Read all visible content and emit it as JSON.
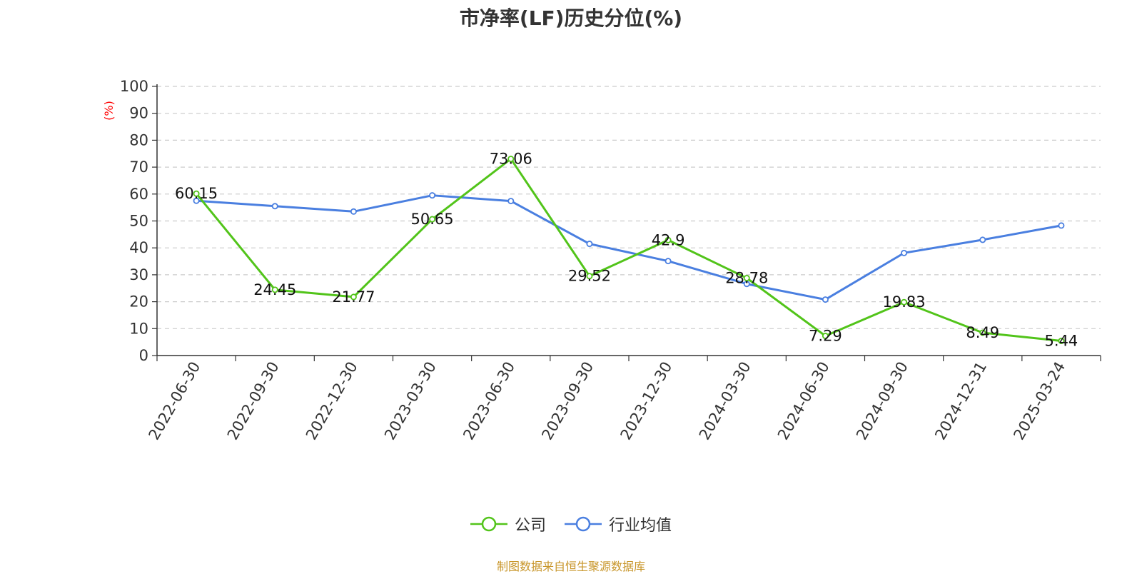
{
  "title": "市净率(LF)历史分位(%)",
  "source_note": "制图数据来自恒生聚源数据库",
  "colors": {
    "company": "#52c41a",
    "industry": "#4a7fe0",
    "ylabel": "#ff0000",
    "source": "#c8962a"
  },
  "chart_data": {
    "type": "line",
    "title": "市净率(LF)历史分位(%)",
    "xlabel": "",
    "ylabel": "(%)",
    "ylim": [
      0,
      100
    ],
    "yticks": [
      0,
      10,
      20,
      30,
      40,
      50,
      60,
      70,
      80,
      90,
      100
    ],
    "grid": true,
    "legend_position": "bottom",
    "x": [
      "2022-06-30",
      "2022-09-30",
      "2022-12-30",
      "2023-03-30",
      "2023-06-30",
      "2023-09-30",
      "2023-12-30",
      "2024-03-30",
      "2024-06-30",
      "2024-09-30",
      "2024-12-31",
      "2025-03-24"
    ],
    "series": [
      {
        "name": "公司",
        "color": "#52c41a",
        "values": [
          60.15,
          24.45,
          21.77,
          50.65,
          73.06,
          29.52,
          42.9,
          28.78,
          7.29,
          19.83,
          8.49,
          5.44
        ],
        "labels": [
          "60.15",
          "24.45",
          "21.77",
          "50.65",
          "73.06",
          "29.52",
          "42.9",
          "28.78",
          "7.29",
          "19.83",
          "8.49",
          "5.44"
        ]
      },
      {
        "name": "行业均值",
        "color": "#4a7fe0",
        "values": [
          57.5,
          55.5,
          53.5,
          59.5,
          57.4,
          41.5,
          35.1,
          26.6,
          20.8,
          38.1,
          43.0,
          48.3
        ]
      }
    ]
  }
}
